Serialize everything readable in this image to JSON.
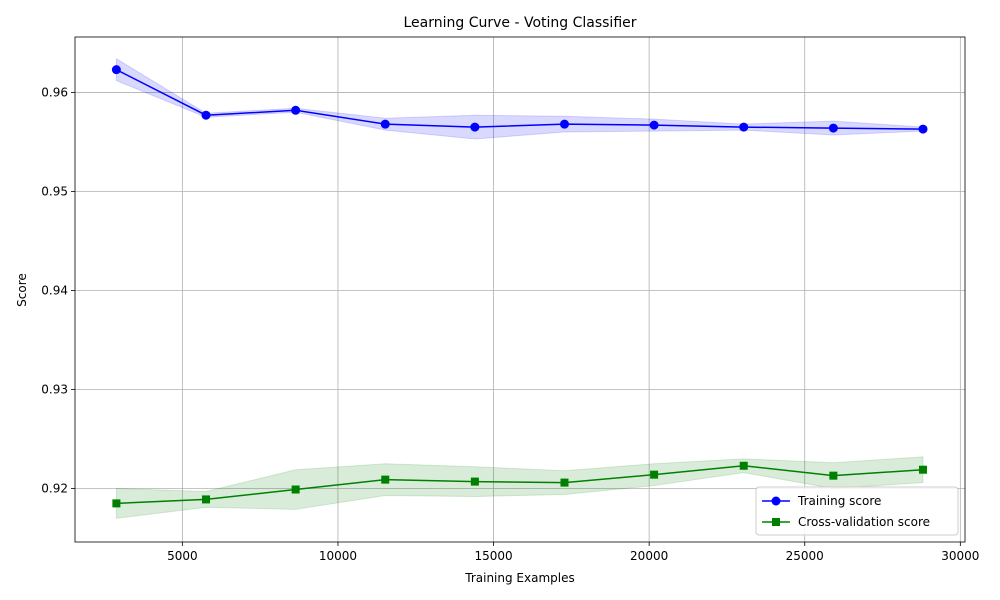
{
  "chart_data": {
    "type": "line",
    "title": "Learning Curve - Voting Classifier",
    "xlabel": "Training Examples",
    "ylabel": "Score",
    "xlim": [
      1550,
      30150
    ],
    "ylim": [
      0.9146,
      0.9656
    ],
    "xticks": [
      5000,
      10000,
      15000,
      20000,
      25000,
      30000
    ],
    "yticks": [
      0.92,
      0.93,
      0.94,
      0.95,
      0.96
    ],
    "xtick_labels": [
      "5000",
      "10000",
      "15000",
      "20000",
      "25000",
      "30000"
    ],
    "ytick_labels": [
      "0.92",
      "0.93",
      "0.94",
      "0.95",
      "0.96"
    ],
    "grid": true,
    "legend_position": "lower-right",
    "x": [
      2880,
      5760,
      8640,
      11520,
      14400,
      17280,
      20160,
      23040,
      25920,
      28800
    ],
    "series": [
      {
        "name": "Training score",
        "marker": "circle",
        "color": "#0000ff",
        "band_color": "#0000ff",
        "values": [
          0.9623,
          0.9577,
          0.9582,
          0.9568,
          0.9565,
          0.9568,
          0.9567,
          0.9565,
          0.9564,
          0.9563
        ],
        "std": [
          0.0011,
          0.0002,
          0.0002,
          0.0006,
          0.0012,
          0.0008,
          0.0006,
          0.0003,
          0.0007,
          0.0002
        ]
      },
      {
        "name": "Cross-validation score",
        "marker": "square",
        "color": "#008000",
        "band_color": "#008000",
        "values": [
          0.9185,
          0.9189,
          0.9199,
          0.9209,
          0.9207,
          0.9206,
          0.9214,
          0.9223,
          0.9213,
          0.9219
        ],
        "std": [
          0.0015,
          0.0008,
          0.002,
          0.0016,
          0.0015,
          0.0012,
          0.0011,
          0.0007,
          0.0013,
          0.0013
        ]
      }
    ]
  }
}
